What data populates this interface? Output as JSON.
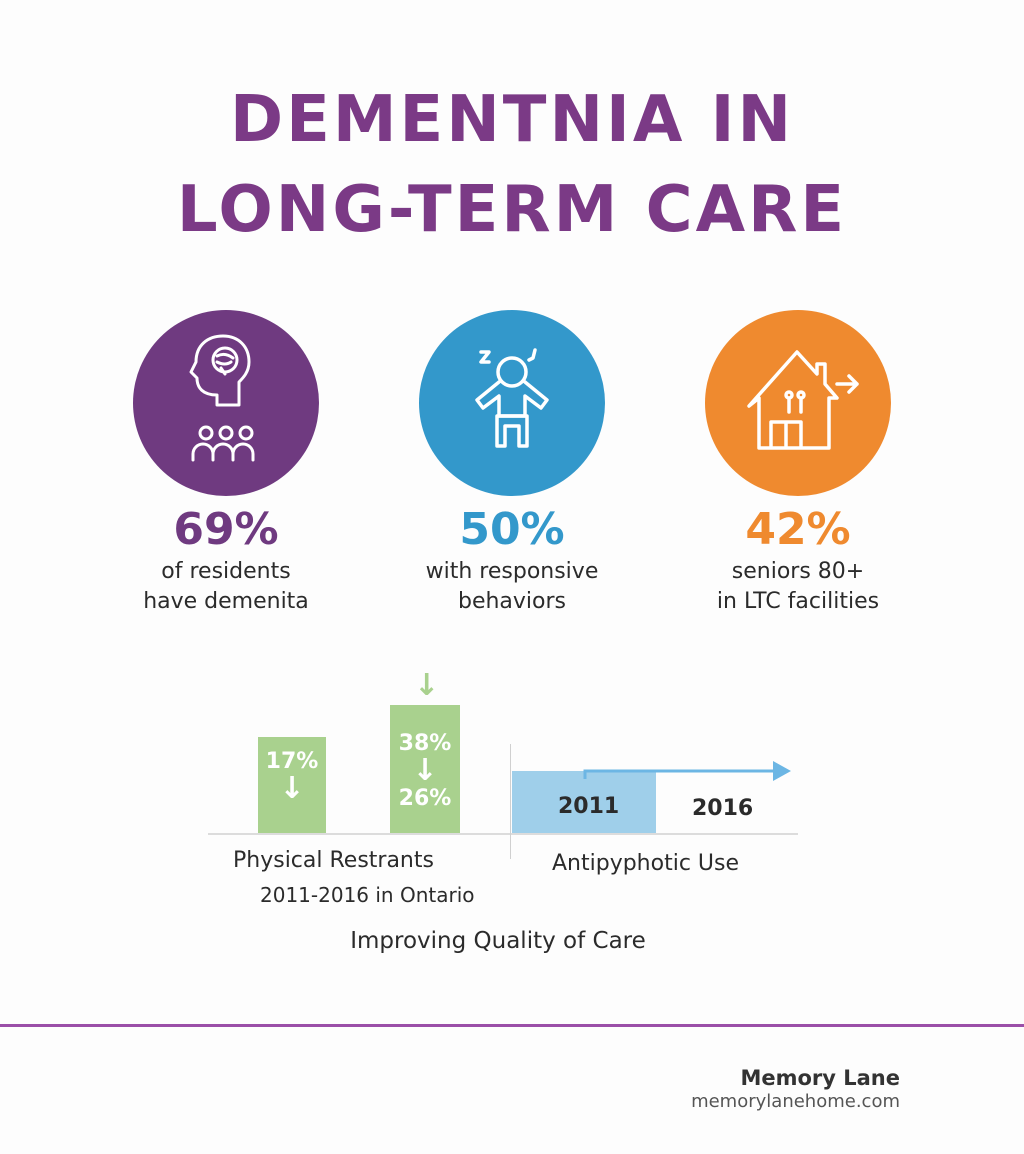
{
  "title": {
    "line1": "DEMENTNIA IN",
    "line2": "LONG-TERM CARE"
  },
  "stats": [
    {
      "value": "69%",
      "line1": "of residents",
      "line2": "have demenita",
      "color": "#6f3a80",
      "icon": "head-brain-people-icon"
    },
    {
      "value": "50%",
      "line1": "with responsive",
      "line2": "behaviors",
      "color": "#3398cb",
      "icon": "agitated-person-icon"
    },
    {
      "value": "42%",
      "line1": "seniors 80+",
      "line2": "in LTC facilities",
      "color": "#ef8a2f",
      "icon": "house-exit-icon"
    }
  ],
  "restraints": {
    "bar1_value": "17%",
    "bar2_top_value": "38%",
    "bar2_bottom_value": "26%",
    "label": "Physical Restrants",
    "sublabel": "2011-2016 in Ontario",
    "color": "#a9d18e"
  },
  "antipsychotic": {
    "year_start": "2011",
    "year_end": "2016",
    "label": "Antipyphotic Use",
    "color": "#9fcfea"
  },
  "caption": "Improving Quality of Care",
  "footer": {
    "brand": "Memory Lane",
    "url": "memorylanehome.com",
    "accent": "#9b4fa8"
  }
}
